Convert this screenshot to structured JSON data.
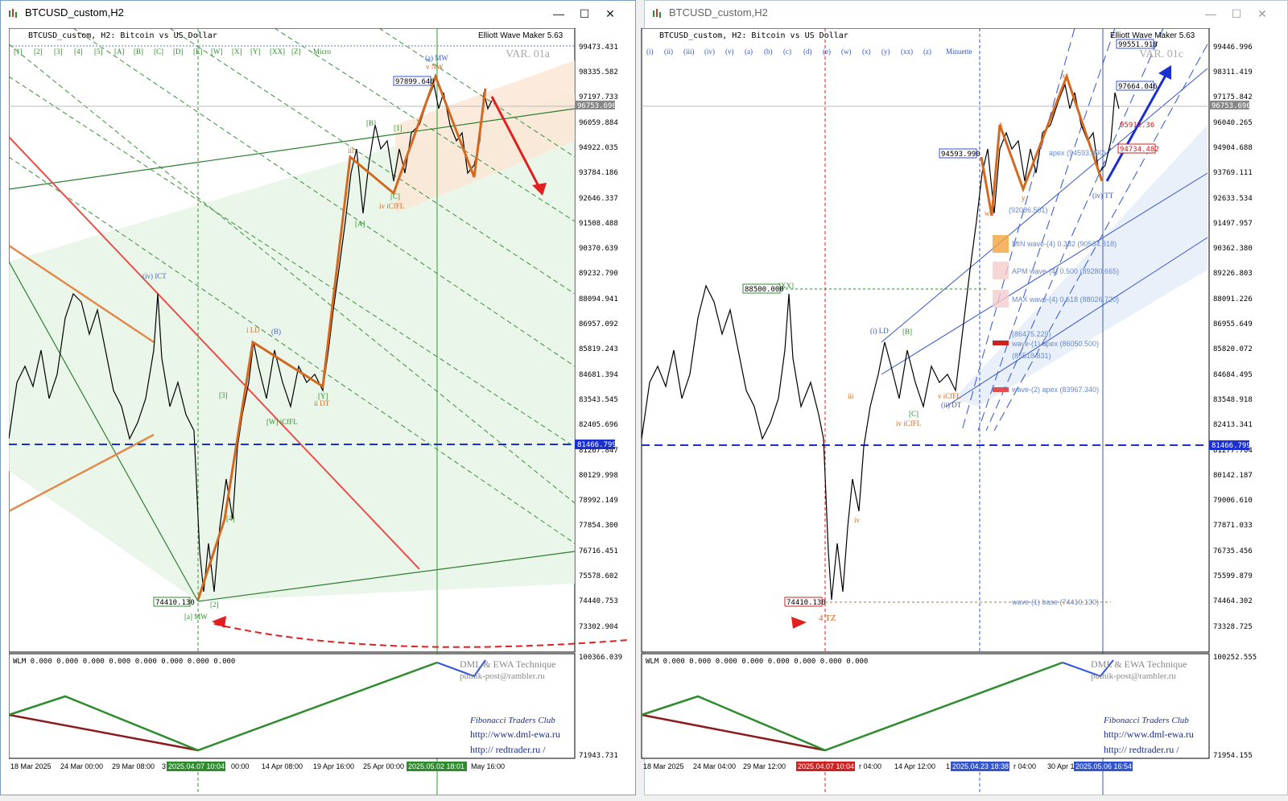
{
  "windows": [
    {
      "id": "left",
      "window_title": "BTCUSD_custom,H2",
      "chart_label": "BTCUSD_custom, H2:  Bitcoin vs US Dollar",
      "ewm_label": "Elliott Wave Maker 5.63",
      "var_label": "VAR. 01a",
      "degree_label": "Micro",
      "wave_buttons": [
        "[1]",
        "[2]",
        "[3]",
        "[4]",
        "[5]",
        "[A]",
        "[B]",
        "[C]",
        "[D]",
        "[E]",
        "[W]",
        "[X]",
        "[Y]",
        "[XX]",
        "[Z]"
      ],
      "price_ticks": [
        "99473.431",
        "98335.582",
        "97197.733",
        "96059.884",
        "94922.035",
        "93784.186",
        "92646.337",
        "91508.488",
        "90370.639",
        "89232.790",
        "88094.941",
        "86957.092",
        "85819.243",
        "84681.394",
        "83543.545",
        "82405.696",
        "81267.847",
        "80129.998",
        "78992.149",
        "77854.300",
        "76716.451",
        "75578.602",
        "74440.753",
        "73302.904"
      ],
      "current_price": "96753.690",
      "hline_price": "81466.799",
      "indicator_top": "100366.039",
      "indicator_bottom": "71943.731",
      "time_labels": [
        "18 Mar 2025",
        "24 Mar 00:00",
        "29 Mar 08:00",
        "3",
        "2025.04.07 10:04",
        "00:00",
        "14 Apr 08:00",
        "19 Apr 16:00",
        "25 Apr 00:00",
        "2025.05.02 18:01",
        "May 16:00"
      ],
      "low_label": "74410.130",
      "high_label": "97899.640",
      "wlm_text": "WLM 0.000 0.000 0.000 0.000 0.000 0.000 0.000 0.000",
      "credit_line1": "DML & EWA Technique",
      "credit_line2": "putnik-post@rambler.ru",
      "club_label": "Fibonacci     Traders     Club",
      "url1": "http://www.dml-ewa.ru",
      "url2": "http:// redtrader.ru /",
      "wave_labels": {
        "a_mw": "[a] MW",
        "a_mw_top": "(a) MW",
        "v_nw": "v NW",
        "iv_ict": "(iv) ICT",
        "i_ld": "i LD",
        "b": "(B)",
        "w_icifl": "[W] iCfFL",
        "ii_dt": "ii DT",
        "iv_icifl": "iv iCfFL",
        "a": "[A]",
        "b2": "[B]",
        "c": "[C]",
        "one": "[1]",
        "two": "[2]",
        "three": "[3]",
        "four": "[4]",
        "iii": "iii",
        "y": "[Y]"
      },
      "chart_data": {
        "type": "candlestick",
        "symbol": "BTCUSD_custom",
        "timeframe": "H2",
        "ylim": [
          72800,
          100000
        ],
        "hline": 81466.799,
        "key_points": {
          "low": 74410.13,
          "high": 97899.64,
          "last": 96753.69
        }
      }
    },
    {
      "id": "right",
      "window_title": "BTCUSD_custom,H2",
      "chart_label": "BTCUSD_custom, H2:  Bitcoin vs US Dollar",
      "ewm_label": "Elliott Wave Maker 5.63",
      "var_label": "VAR. 01c",
      "degree_label": "Minuette",
      "wave_buttons": [
        "(i)",
        "(ii)",
        "(iii)",
        "(iv)",
        "(v)",
        "(a)",
        "(b)",
        "(c)",
        "(d)",
        "(e)",
        "(w)",
        "(x)",
        "(y)",
        "(xx)",
        "(z)"
      ],
      "price_ticks": [
        "99446.996",
        "98311.419",
        "97175.842",
        "96040.265",
        "94904.688",
        "93769.111",
        "92633.534",
        "91497.957",
        "90362.380",
        "89226.803",
        "88091.226",
        "86955.649",
        "85820.072",
        "84684.495",
        "83548.918",
        "82413.341",
        "81277.764",
        "80142.187",
        "79006.610",
        "77871.033",
        "76735.456",
        "75599.879",
        "74464.302",
        "73328.725"
      ],
      "current_price": "96753.690",
      "hline_price": "81466.799",
      "indicator_top": "100252.555",
      "indicator_bottom": "71954.155",
      "time_labels": [
        "18 Mar 2025",
        "24 Mar 04:00",
        "29 Mar 12:00",
        "2025.04.07 10:04",
        "r 04:00",
        "14 Apr 12:00",
        "1",
        "2025.04.23 18:38",
        "r 04:00",
        "30 Apr 1",
        "2025.05.06 16:54"
      ],
      "price_boxes": {
        "p99551": "99551.918",
        "p97664": "97664.046",
        "p95912": "95912.36",
        "p94734": "94734.482",
        "p94593": "94593.990",
        "p88500": "88500.000",
        "p74410": "74410.130"
      },
      "fib_levels": [
        "(92086.501)",
        "MIN wave-(4) 0.382 (90534.818)",
        "APM wave-(4) 0.500 (89280.665)",
        "MAX wave-(4) 0.618 (88026.720)",
        "(86475.229)",
        "wave-(1) apex (86050.500)",
        "(85518.831)",
        "wave-(2) apex (83967.340)",
        "wave-(1) base (74410.130)",
        "apex (94593.990)"
      ],
      "wlm_text": "WLM 0.000 0.000 0.000 0.000 0.000 0.000 0.000 0.000",
      "credit_line1": "DML & EWA Technique",
      "credit_line2": "putnik-post@rambler.ru",
      "club_label": "Fibonacci     Traders     Club",
      "url1": "http://www.dml-ewa.ru",
      "url2": "http://  redtrader.ru /",
      "wave_labels": {
        "four_tz": "4 TZ",
        "xx": "[XX]",
        "i_ld": "(i) LD",
        "b": "[B]",
        "c": "[C]",
        "iii": "iii",
        "iv": "iv",
        "ii_dt": "(ii) DT",
        "v_icifl": "v iCfFL",
        "iv_icifl": "iv iCfFL",
        "iv_tt": "(iv) TT",
        "x": "x",
        "y": "y",
        "w": "w",
        "xx_top": "xx"
      },
      "chart_data": {
        "type": "candlestick",
        "symbol": "BTCUSD_custom",
        "timeframe": "H2",
        "ylim": [
          72800,
          100000
        ],
        "hline": 81466.799,
        "key_points": {
          "low": 74410.13,
          "high": 97664.046,
          "last": 96753.69
        }
      }
    }
  ]
}
